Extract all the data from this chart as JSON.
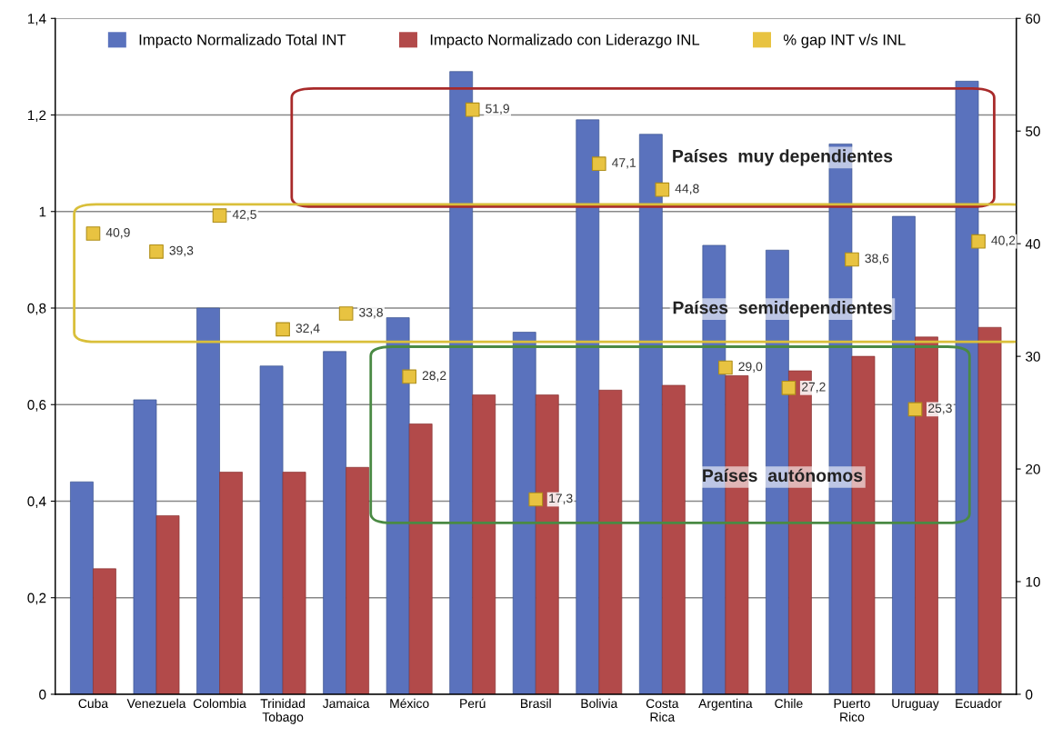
{
  "chart_data": {
    "type": "bar",
    "categories": [
      "Cuba",
      "Venezuela",
      "Colombia",
      "Trinidad\nTobago",
      "Jamaica",
      "México",
      "Perú",
      "Brasil",
      "Bolivia",
      "Costa\nRica",
      "Argentina",
      "Chile",
      "Puerto\nRico",
      "Uruguay",
      "Ecuador"
    ],
    "series": [
      {
        "name": "Impacto Normalizado Total INT",
        "color": "#5a72bd",
        "values": [
          0.44,
          0.61,
          0.8,
          0.68,
          0.71,
          0.78,
          1.29,
          0.75,
          1.19,
          1.16,
          0.93,
          0.92,
          1.14,
          0.99,
          1.27
        ]
      },
      {
        "name": "Impacto Normalizado con Liderazgo INL",
        "color": "#b24a4a",
        "values": [
          0.26,
          0.37,
          0.46,
          0.46,
          0.47,
          0.56,
          0.62,
          0.62,
          0.63,
          0.64,
          0.66,
          0.67,
          0.7,
          0.74,
          0.76
        ]
      },
      {
        "name": "% gap INT v/s INL",
        "type": "scatter",
        "axis": "y2",
        "marker": "square",
        "color": "#e8c341",
        "values": [
          40.9,
          39.3,
          42.5,
          32.4,
          33.8,
          28.2,
          51.9,
          17.3,
          47.1,
          44.8,
          29.0,
          27.2,
          38.6,
          25.3,
          40.2
        ],
        "value_labels": [
          "40,9",
          "39,3",
          "42,5",
          "32,4",
          "33,8",
          "28,2",
          "51,9",
          "17,3",
          "47,1",
          "44,8",
          "29,0",
          "27,2",
          "38,6",
          "25,3",
          "40,2"
        ]
      }
    ],
    "ylim": [
      0,
      1.4
    ],
    "yticks": [
      0,
      {
        "value": 0.2,
        "label": "0,2"
      },
      {
        "value": 0.4,
        "label": "0,4"
      },
      {
        "value": 0.6,
        "label": "0,6"
      },
      {
        "value": 0.8,
        "label": "0,8"
      },
      1,
      {
        "value": 1.2,
        "label": "1,2"
      },
      {
        "value": 1.4,
        "label": "1,4"
      }
    ],
    "y2lim": [
      0,
      60
    ],
    "y2ticks": [
      0,
      10,
      20,
      30,
      40,
      50,
      60
    ],
    "grid": "y",
    "legend": "top",
    "annotations": [
      "Países  muy dependientes",
      "Países  semidependientes",
      "Países  autónomos"
    ]
  }
}
